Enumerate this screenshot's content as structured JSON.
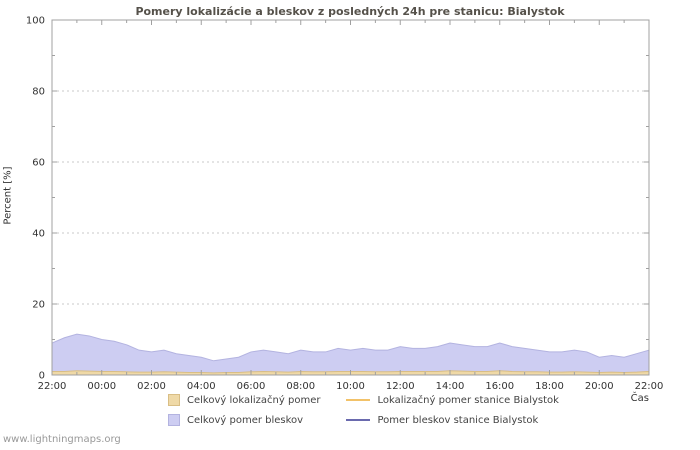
{
  "watermark": "www.lightningmaps.org",
  "colors": {
    "plot_border": "#a0a0a0",
    "grid": "#c8c8c8",
    "title": "#55514a",
    "tick_text": "#333333"
  },
  "chart_data": {
    "type": "area",
    "title": "Pomery lokalizácie a bleskov z posledných 24h pre stanicu: Bialystok",
    "xlabel": "Čas",
    "ylabel": "Percent  [%]",
    "ylim": [
      0,
      100
    ],
    "yticks": [
      0,
      20,
      40,
      60,
      80,
      100
    ],
    "y_minor_step": 10,
    "xtick_labels": [
      "22:00",
      "00:00",
      "02:00",
      "04:00",
      "06:00",
      "08:00",
      "10:00",
      "12:00",
      "14:00",
      "16:00",
      "18:00",
      "20:00",
      "22:00"
    ],
    "x_minor_count": 24,
    "x_start": "22:00",
    "x_step_minutes": 30,
    "grid": true,
    "legend_position": "bottom",
    "series": [
      {
        "id": "total-localization-ratio",
        "name": "Celkový lokalizačný pomer",
        "type": "area",
        "color": "#efd9a7",
        "edge": "#d9be85",
        "values": [
          1,
          1,
          1.2,
          1.1,
          1,
          1,
          0.9,
          0.8,
          0.8,
          0.9,
          0.8,
          0.7,
          0.7,
          0.6,
          0.7,
          0.7,
          0.9,
          1,
          0.9,
          0.8,
          1,
          0.9,
          0.9,
          1,
          1,
          1,
          0.9,
          0.9,
          1,
          1,
          1,
          1,
          1.2,
          1.1,
          1,
          1,
          1.2,
          1,
          0.9,
          0.9,
          0.8,
          0.8,
          0.9,
          0.8,
          0.7,
          0.8,
          0.7,
          0.8,
          1
        ]
      },
      {
        "id": "total-strike-ratio",
        "name": "Celkový pomer bleskov",
        "type": "area",
        "color": "#cdcdf2",
        "edge": "#b3b3e0",
        "values": [
          9,
          10.5,
          11.5,
          11,
          10,
          9.5,
          8.5,
          7,
          6.5,
          7,
          6,
          5.5,
          5,
          4,
          4.5,
          5,
          6.5,
          7,
          6.5,
          6,
          7,
          6.5,
          6.5,
          7.5,
          7,
          7.5,
          7,
          7,
          8,
          7.5,
          7.5,
          8,
          9,
          8.5,
          8,
          8,
          9,
          8,
          7.5,
          7,
          6.5,
          6.5,
          7,
          6.5,
          5,
          5.5,
          5,
          6,
          7
        ]
      },
      {
        "id": "station-localization-ratio",
        "name": "Lokalizačný pomer stanice Bialystok",
        "type": "line",
        "color": "#f2c269",
        "values": [
          0,
          0,
          0,
          0,
          0,
          0,
          0,
          0,
          0,
          0,
          0,
          0,
          0,
          0,
          0,
          0,
          0,
          0,
          0,
          0,
          0,
          0,
          0,
          0,
          0,
          0,
          0,
          0,
          0,
          0,
          0,
          0,
          0,
          0,
          0,
          0,
          0,
          0,
          0,
          0,
          0,
          0,
          0,
          0,
          0,
          0,
          0,
          0,
          0
        ]
      },
      {
        "id": "station-strike-ratio",
        "name": "Pomer bleskov stanice Bialystok",
        "type": "line",
        "color": "#6a6aae",
        "values": [
          0,
          0,
          0,
          0,
          0,
          0,
          0,
          0,
          0,
          0,
          0,
          0,
          0,
          0,
          0,
          0,
          0,
          0,
          0,
          0,
          0,
          0,
          0,
          0,
          0,
          0,
          0,
          0,
          0,
          0,
          0,
          0,
          0,
          0,
          0,
          0,
          0,
          0,
          0,
          0,
          0,
          0,
          0,
          0,
          0,
          0,
          0,
          0,
          0
        ]
      }
    ]
  }
}
